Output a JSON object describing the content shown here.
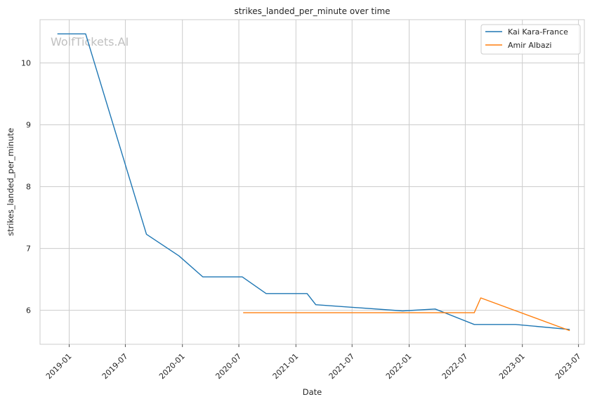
{
  "chart_data": {
    "type": "line",
    "title": "strikes_landed_per_minute over time",
    "xlabel": "Date",
    "ylabel": "strikes_landed_per_minute",
    "watermark": "WolfTickets.AI",
    "x_ticks": [
      "2019-01",
      "2019-07",
      "2020-01",
      "2020-07",
      "2021-01",
      "2021-07",
      "2022-01",
      "2022-07",
      "2023-01",
      "2023-07"
    ],
    "y_ticks": [
      6,
      7,
      8,
      9,
      10
    ],
    "xlim": [
      "2018-09-29",
      "2023-07-20"
    ],
    "ylim": [
      5.45,
      10.7
    ],
    "grid": true,
    "legend_position": "top-right",
    "series": [
      {
        "name": "Kai Kara-France",
        "color": "#1f77b4",
        "points": [
          {
            "x": "2018-11-24",
            "y": 10.47
          },
          {
            "x": "2019-02-23",
            "y": 10.47
          },
          {
            "x": "2019-09-07",
            "y": 7.23
          },
          {
            "x": "2019-12-21",
            "y": 6.88
          },
          {
            "x": "2020-03-07",
            "y": 6.54
          },
          {
            "x": "2020-07-12",
            "y": 6.54
          },
          {
            "x": "2020-09-27",
            "y": 6.27
          },
          {
            "x": "2021-02-06",
            "y": 6.27
          },
          {
            "x": "2021-03-06",
            "y": 6.09
          },
          {
            "x": "2021-12-11",
            "y": 5.99
          },
          {
            "x": "2022-03-26",
            "y": 6.02
          },
          {
            "x": "2022-07-30",
            "y": 5.77
          },
          {
            "x": "2022-12-10",
            "y": 5.77
          },
          {
            "x": "2023-06-03",
            "y": 5.69
          }
        ]
      },
      {
        "name": "Amir Albazi",
        "color": "#ff7f0e",
        "points": [
          {
            "x": "2020-07-15",
            "y": 5.96
          },
          {
            "x": "2022-07-30",
            "y": 5.96
          },
          {
            "x": "2022-08-20",
            "y": 6.2
          },
          {
            "x": "2023-06-03",
            "y": 5.67
          }
        ]
      }
    ]
  }
}
